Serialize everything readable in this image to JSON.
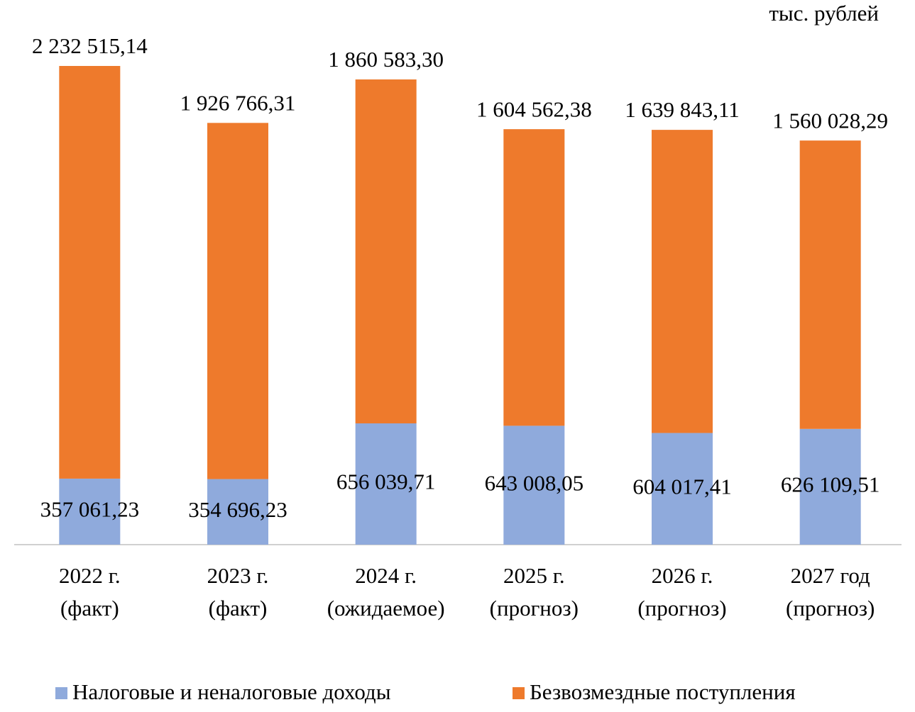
{
  "chart_data": {
    "type": "stacked_bar",
    "unit_label": "тыс. рублей",
    "categories": [
      "2022 г.\n(факт)",
      "2023 г.\n(факт)",
      "2024 г.\n(ожидаемое)",
      "2025 г.\n(прогноз)",
      "2026 г.\n(прогноз)",
      "2027 год\n(прогноз)"
    ],
    "series": [
      {
        "name": "Налоговые и неналоговые доходы",
        "color": "#8faadc",
        "values": [
          357061.23,
          354696.23,
          656039.71,
          643008.05,
          604017.41,
          626109.51
        ],
        "value_labels": [
          "357 061,23",
          "354 696,23",
          "656 039,71",
          "643 008,05",
          "604 017,41",
          "626 109,51"
        ]
      },
      {
        "name": "Безвозмездные поступления",
        "color": "#ee7a2c",
        "values": [
          2232515.14,
          1926766.31,
          1860583.3,
          1604562.38,
          1639843.11,
          1560028.29
        ],
        "value_labels": [
          "2 232 515,14",
          "1 926 766,31",
          "1 860 583,30",
          "1 604 562,38",
          "1 639 843,11",
          "1 560 028,29"
        ]
      }
    ],
    "legend": "bottom"
  }
}
